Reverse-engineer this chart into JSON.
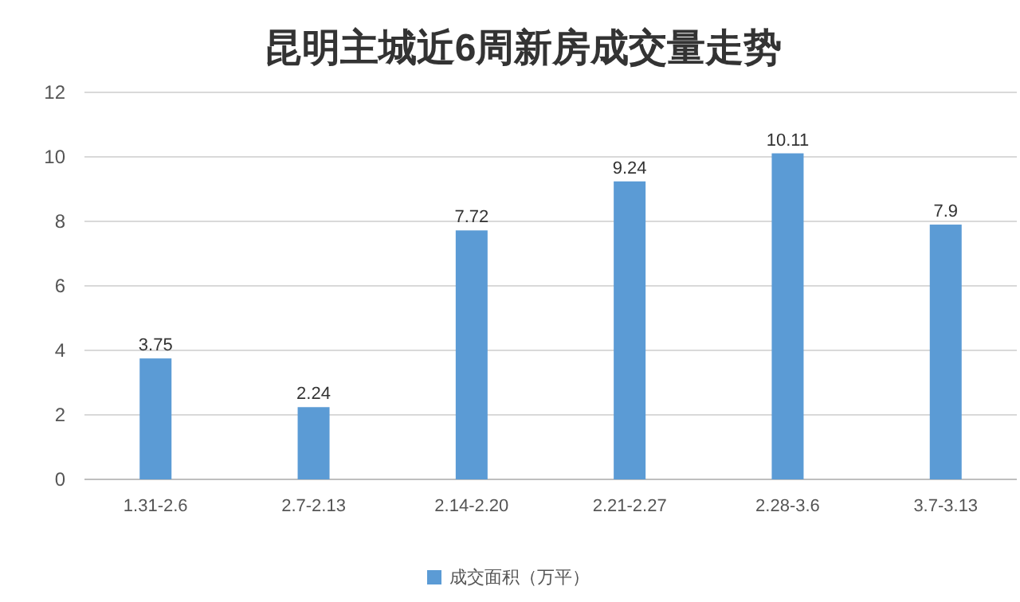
{
  "chart_data": {
    "type": "bar",
    "title": "昆明主城近6周新房成交量走势",
    "categories": [
      "1.31-2.6",
      "2.7-2.13",
      "2.14-2.20",
      "2.21-2.27",
      "2.28-3.6",
      "3.7-3.13"
    ],
    "series": [
      {
        "name": "成交面积（万平）",
        "color": "#5b9bd5",
        "values": [
          3.75,
          2.24,
          7.72,
          9.24,
          10.11,
          7.9
        ]
      }
    ],
    "ylim": [
      0,
      12
    ],
    "yticks": [
      0,
      2,
      4,
      6,
      8,
      10,
      12
    ],
    "grid": "y",
    "legend": "bottom",
    "data_labels": true
  }
}
